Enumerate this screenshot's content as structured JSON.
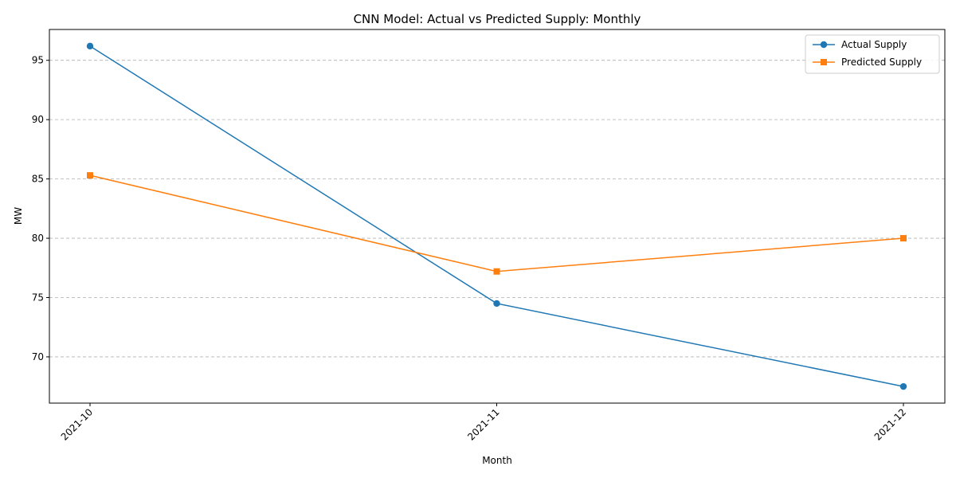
{
  "chart_data": {
    "type": "line",
    "title": "CNN Model: Actual vs Predicted Supply: Monthly",
    "xlabel": "Month",
    "ylabel": "MW",
    "categories": [
      "2021-10",
      "2021-11",
      "2021-12"
    ],
    "series": [
      {
        "name": "Actual Supply",
        "values": [
          96.2,
          74.5,
          67.5
        ],
        "color": "#1f77b4",
        "marker": "circle"
      },
      {
        "name": "Predicted Supply",
        "values": [
          85.3,
          77.2,
          80.0
        ],
        "color": "#ff7f0e",
        "marker": "square"
      }
    ],
    "ylim": [
      66.1,
      97.6
    ],
    "yticks": [
      70,
      75,
      80,
      85,
      90,
      95
    ],
    "grid": "y-dashed",
    "legend": "top-right",
    "xtick_rotation": 45
  }
}
